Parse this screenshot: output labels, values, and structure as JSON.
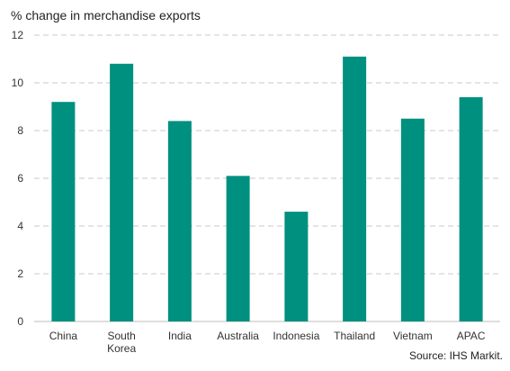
{
  "chart_data": {
    "type": "bar",
    "ylabel": "% change in merchandise exports",
    "categories": [
      [
        "China"
      ],
      [
        "South",
        "Korea"
      ],
      [
        "India"
      ],
      [
        "Australia"
      ],
      [
        "Indonesia"
      ],
      [
        "Thailand"
      ],
      [
        "Vietnam"
      ],
      [
        "APAC"
      ]
    ],
    "values": [
      9.2,
      10.8,
      8.4,
      6.1,
      4.6,
      11.1,
      8.5,
      9.4
    ],
    "ylim": [
      0,
      12
    ],
    "yticks": [
      0,
      2,
      4,
      6,
      8,
      10,
      12
    ],
    "grid": true,
    "bar_color": "#00907f",
    "grid_color": "#c8c8c8",
    "source": "Source: IHS Markit."
  }
}
